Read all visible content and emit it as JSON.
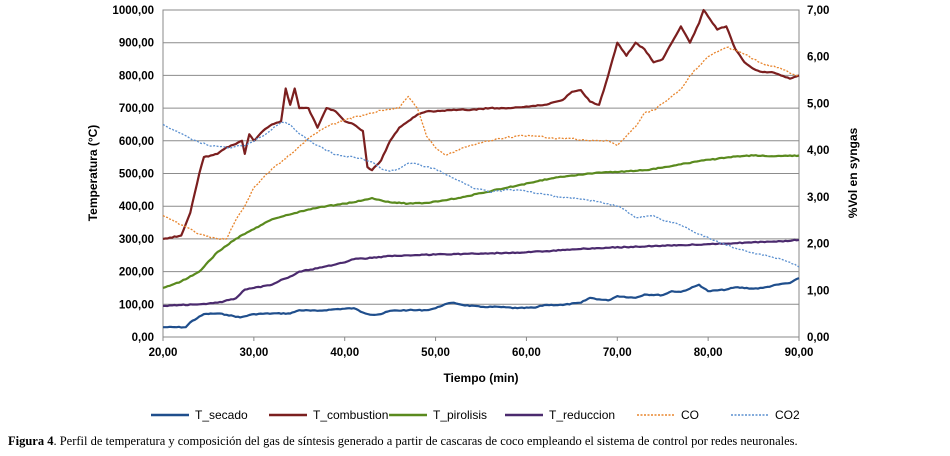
{
  "chart_data": {
    "type": "line",
    "title": "",
    "xlabel": "Tiempo (min)",
    "ylabel": "Temperatura (°C)",
    "y2label": "%Vol en syngas",
    "xlim": [
      20,
      90
    ],
    "ylim": [
      0,
      1000
    ],
    "y2lim": [
      0,
      7
    ],
    "x_ticks": [
      "20,00",
      "30,00",
      "40,00",
      "50,00",
      "60,00",
      "70,00",
      "80,00",
      "90,00"
    ],
    "y_ticks": [
      "0,00",
      "100,00",
      "200,00",
      "300,00",
      "400,00",
      "500,00",
      "600,00",
      "700,00",
      "800,00",
      "900,00",
      "1000,00"
    ],
    "y2_ticks": [
      "0,00",
      "1,00",
      "2,00",
      "3,00",
      "4,00",
      "5,00",
      "6,00",
      "7,00"
    ],
    "grid": true,
    "legend_position": "bottom",
    "series": [
      {
        "name": "T_secado",
        "axis": "left",
        "color": "#1f4e8c",
        "style": "solid",
        "points": [
          [
            20,
            30
          ],
          [
            22.5,
            30
          ],
          [
            23,
            45
          ],
          [
            24.5,
            70
          ],
          [
            26,
            72
          ],
          [
            27,
            68
          ],
          [
            28.5,
            60
          ],
          [
            30,
            70
          ],
          [
            32,
            72
          ],
          [
            34,
            72
          ],
          [
            35,
            82
          ],
          [
            37,
            80
          ],
          [
            39,
            85
          ],
          [
            41,
            88
          ],
          [
            42,
            75
          ],
          [
            43,
            68
          ],
          [
            44,
            70
          ],
          [
            45,
            80
          ],
          [
            47,
            82
          ],
          [
            49,
            82
          ],
          [
            50,
            88
          ],
          [
            51,
            100
          ],
          [
            52,
            105
          ],
          [
            53,
            98
          ],
          [
            55,
            92
          ],
          [
            57,
            92
          ],
          [
            59,
            88
          ],
          [
            61,
            90
          ],
          [
            62,
            98
          ],
          [
            64,
            98
          ],
          [
            66,
            105
          ],
          [
            67,
            120
          ],
          [
            68,
            115
          ],
          [
            69,
            112
          ],
          [
            70,
            125
          ],
          [
            72,
            120
          ],
          [
            73,
            130
          ],
          [
            75,
            128
          ],
          [
            76,
            140
          ],
          [
            77,
            138
          ],
          [
            78,
            148
          ],
          [
            79,
            160
          ],
          [
            80,
            140
          ],
          [
            82,
            145
          ],
          [
            83,
            152
          ],
          [
            85,
            148
          ],
          [
            86,
            150
          ],
          [
            88,
            162
          ],
          [
            89,
            165
          ],
          [
            90,
            180
          ]
        ]
      },
      {
        "name": "T_combustion",
        "axis": "left",
        "color": "#7b1f1f",
        "style": "solid",
        "points": [
          [
            20,
            300
          ],
          [
            22,
            310
          ],
          [
            23,
            380
          ],
          [
            24,
            500
          ],
          [
            24.5,
            550
          ],
          [
            26,
            560
          ],
          [
            27,
            580
          ],
          [
            28,
            590
          ],
          [
            28.7,
            600
          ],
          [
            29,
            560
          ],
          [
            29.5,
            620
          ],
          [
            30,
            600
          ],
          [
            31,
            630
          ],
          [
            32,
            650
          ],
          [
            33,
            660
          ],
          [
            33.5,
            760
          ],
          [
            34,
            710
          ],
          [
            34.5,
            760
          ],
          [
            35,
            700
          ],
          [
            36,
            700
          ],
          [
            37,
            640
          ],
          [
            38,
            700
          ],
          [
            39,
            690
          ],
          [
            40,
            660
          ],
          [
            41,
            650
          ],
          [
            42,
            630
          ],
          [
            42.5,
            520
          ],
          [
            43,
            510
          ],
          [
            44,
            540
          ],
          [
            45,
            600
          ],
          [
            46,
            640
          ],
          [
            47,
            660
          ],
          [
            48,
            680
          ],
          [
            49,
            690
          ],
          [
            50,
            690
          ],
          [
            52,
            695
          ],
          [
            54,
            695
          ],
          [
            56,
            700
          ],
          [
            58,
            700
          ],
          [
            60,
            705
          ],
          [
            62,
            710
          ],
          [
            64,
            725
          ],
          [
            65,
            750
          ],
          [
            66,
            755
          ],
          [
            67,
            720
          ],
          [
            68,
            710
          ],
          [
            69,
            800
          ],
          [
            70,
            900
          ],
          [
            71,
            860
          ],
          [
            72,
            900
          ],
          [
            73,
            880
          ],
          [
            74,
            840
          ],
          [
            75,
            850
          ],
          [
            76,
            900
          ],
          [
            77,
            950
          ],
          [
            78,
            900
          ],
          [
            79,
            960
          ],
          [
            79.5,
            1000
          ],
          [
            80,
            980
          ],
          [
            81,
            940
          ],
          [
            82,
            950
          ],
          [
            83,
            880
          ],
          [
            84,
            840
          ],
          [
            85,
            820
          ],
          [
            86,
            810
          ],
          [
            87,
            810
          ],
          [
            88,
            800
          ],
          [
            89,
            790
          ],
          [
            90,
            800
          ]
        ]
      },
      {
        "name": "T_pirolisis",
        "axis": "left",
        "color": "#5a8a1e",
        "style": "solid",
        "points": [
          [
            20,
            150
          ],
          [
            22,
            170
          ],
          [
            24,
            200
          ],
          [
            26,
            260
          ],
          [
            28,
            300
          ],
          [
            30,
            330
          ],
          [
            32,
            360
          ],
          [
            34,
            375
          ],
          [
            36,
            390
          ],
          [
            38,
            400
          ],
          [
            40,
            408
          ],
          [
            42,
            418
          ],
          [
            43,
            425
          ],
          [
            44,
            418
          ],
          [
            45,
            412
          ],
          [
            47,
            408
          ],
          [
            49,
            410
          ],
          [
            51,
            418
          ],
          [
            53,
            428
          ],
          [
            55,
            440
          ],
          [
            57,
            452
          ],
          [
            59,
            463
          ],
          [
            61,
            475
          ],
          [
            63,
            486
          ],
          [
            65,
            494
          ],
          [
            67,
            500
          ],
          [
            69,
            504
          ],
          [
            71,
            507
          ],
          [
            73,
            510
          ],
          [
            75,
            518
          ],
          [
            77,
            528
          ],
          [
            79,
            538
          ],
          [
            81,
            545
          ],
          [
            83,
            552
          ],
          [
            85,
            555
          ],
          [
            87,
            553
          ],
          [
            90,
            555
          ]
        ]
      },
      {
        "name": "T_reduccion",
        "axis": "left",
        "color": "#4b2a6e",
        "style": "solid",
        "points": [
          [
            20,
            95
          ],
          [
            22,
            98
          ],
          [
            24,
            100
          ],
          [
            26,
            105
          ],
          [
            28,
            118
          ],
          [
            29,
            145
          ],
          [
            30,
            150
          ],
          [
            32,
            160
          ],
          [
            33,
            175
          ],
          [
            34,
            185
          ],
          [
            35,
            200
          ],
          [
            37,
            210
          ],
          [
            39,
            222
          ],
          [
            40,
            228
          ],
          [
            41,
            238
          ],
          [
            43,
            242
          ],
          [
            45,
            248
          ],
          [
            47,
            250
          ],
          [
            50,
            252
          ],
          [
            53,
            254
          ],
          [
            56,
            256
          ],
          [
            59,
            258
          ],
          [
            62,
            262
          ],
          [
            65,
            268
          ],
          [
            68,
            272
          ],
          [
            71,
            275
          ],
          [
            74,
            278
          ],
          [
            77,
            281
          ],
          [
            80,
            284
          ],
          [
            83,
            287
          ],
          [
            86,
            291
          ],
          [
            88,
            293
          ],
          [
            90,
            297
          ]
        ]
      },
      {
        "name": "CO",
        "axis": "right",
        "color": "#e8852d",
        "style": "dashed",
        "points": [
          [
            20,
            2.6
          ],
          [
            22,
            2.4
          ],
          [
            24,
            2.2
          ],
          [
            26,
            2.1
          ],
          [
            27,
            2.1
          ],
          [
            28,
            2.5
          ],
          [
            29,
            2.8
          ],
          [
            30,
            3.2
          ],
          [
            31,
            3.4
          ],
          [
            32,
            3.6
          ],
          [
            34,
            3.9
          ],
          [
            36,
            4.25
          ],
          [
            38,
            4.5
          ],
          [
            40,
            4.65
          ],
          [
            42,
            4.75
          ],
          [
            44,
            4.85
          ],
          [
            46,
            4.9
          ],
          [
            47,
            5.15
          ],
          [
            48,
            4.9
          ],
          [
            49,
            4.3
          ],
          [
            50,
            4.05
          ],
          [
            51,
            3.9
          ],
          [
            52,
            3.95
          ],
          [
            53,
            4.05
          ],
          [
            55,
            4.15
          ],
          [
            57,
            4.25
          ],
          [
            59,
            4.3
          ],
          [
            61,
            4.3
          ],
          [
            63,
            4.25
          ],
          [
            65,
            4.25
          ],
          [
            67,
            4.2
          ],
          [
            69,
            4.2
          ],
          [
            70,
            4.1
          ],
          [
            71,
            4.3
          ],
          [
            72,
            4.5
          ],
          [
            73,
            4.8
          ],
          [
            74,
            4.85
          ],
          [
            75,
            5.0
          ],
          [
            76,
            5.15
          ],
          [
            77,
            5.3
          ],
          [
            78,
            5.6
          ],
          [
            79,
            5.8
          ],
          [
            80,
            6.0
          ],
          [
            81,
            6.1
          ],
          [
            82,
            6.2
          ],
          [
            83,
            6.15
          ],
          [
            84,
            6.05
          ],
          [
            85,
            5.95
          ],
          [
            86,
            5.85
          ],
          [
            87,
            5.8
          ],
          [
            88,
            5.75
          ],
          [
            89,
            5.65
          ],
          [
            90,
            5.6
          ]
        ]
      },
      {
        "name": "CO2",
        "axis": "right",
        "color": "#5a8fcf",
        "style": "dashed",
        "points": [
          [
            20,
            4.55
          ],
          [
            21,
            4.45
          ],
          [
            23,
            4.25
          ],
          [
            25,
            4.1
          ],
          [
            27,
            4.05
          ],
          [
            29,
            4.1
          ],
          [
            31,
            4.3
          ],
          [
            33,
            4.6
          ],
          [
            34,
            4.55
          ],
          [
            35,
            4.35
          ],
          [
            37,
            4.1
          ],
          [
            39,
            3.9
          ],
          [
            41,
            3.85
          ],
          [
            43,
            3.75
          ],
          [
            44,
            3.6
          ],
          [
            45,
            3.55
          ],
          [
            46,
            3.6
          ],
          [
            47,
            3.72
          ],
          [
            48,
            3.7
          ],
          [
            50,
            3.6
          ],
          [
            52,
            3.4
          ],
          [
            54,
            3.2
          ],
          [
            56,
            3.1
          ],
          [
            58,
            3.15
          ],
          [
            60,
            3.12
          ],
          [
            62,
            3.05
          ],
          [
            64,
            2.98
          ],
          [
            66,
            2.95
          ],
          [
            68,
            2.9
          ],
          [
            70,
            2.8
          ],
          [
            71,
            2.7
          ],
          [
            72,
            2.55
          ],
          [
            74,
            2.6
          ],
          [
            75,
            2.5
          ],
          [
            77,
            2.4
          ],
          [
            79,
            2.2
          ],
          [
            81,
            2.05
          ],
          [
            83,
            1.9
          ],
          [
            85,
            1.8
          ],
          [
            87,
            1.72
          ],
          [
            89,
            1.6
          ],
          [
            90,
            1.5
          ]
        ]
      }
    ]
  },
  "caption": {
    "label": "Figura 4",
    "text": ".  Perfil de temperatura y composición del gas de síntesis generado a partir de cascaras de coco empleando el sistema de control por redes neuronales."
  }
}
